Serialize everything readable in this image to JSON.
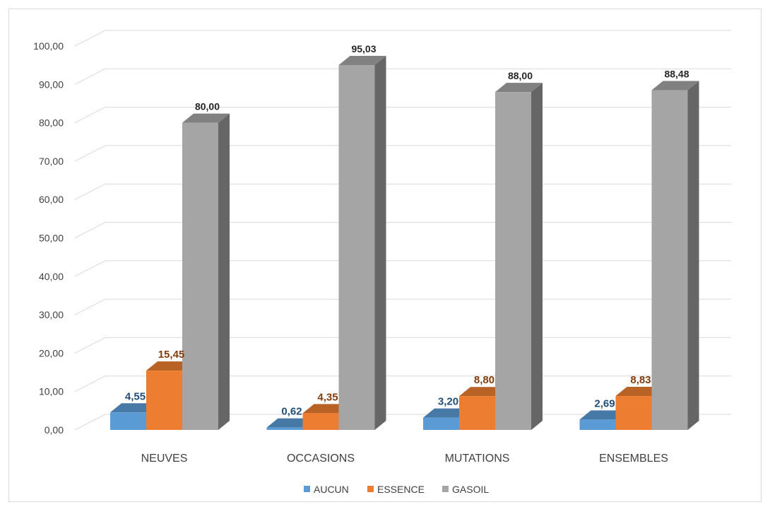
{
  "chart_data": {
    "type": "bar",
    "subtype": "3d-clustered-column",
    "categories": [
      "NEUVES",
      "OCCASIONS",
      "MUTATIONS",
      "ENSEMBLES"
    ],
    "series": [
      {
        "name": "AUCUN",
        "values": [
          4.55,
          0.62,
          3.2,
          2.69
        ],
        "labels": [
          "4,55",
          "0,62",
          "3,20",
          "2,69"
        ],
        "color": "#5b9bd5",
        "label_color": "#1f4e79"
      },
      {
        "name": "ESSENCE",
        "values": [
          15.45,
          4.35,
          8.8,
          8.83
        ],
        "labels": [
          "15,45",
          "4,35",
          "8,80",
          "8,83"
        ],
        "color": "#ed7d31",
        "label_color": "#843c0c"
      },
      {
        "name": "GASOIL",
        "values": [
          80.0,
          95.03,
          88.0,
          88.48
        ],
        "labels": [
          "80,00",
          "95,03",
          "88,00",
          "88,48"
        ],
        "color": "#a5a5a5",
        "label_color": "#262626"
      }
    ],
    "y_ticks": [
      "0,00",
      "10,00",
      "20,00",
      "30,00",
      "40,00",
      "50,00",
      "60,00",
      "70,00",
      "80,00",
      "90,00",
      "100,00"
    ],
    "ylim": [
      0,
      100
    ],
    "grid": true,
    "legend_position": "bottom"
  }
}
